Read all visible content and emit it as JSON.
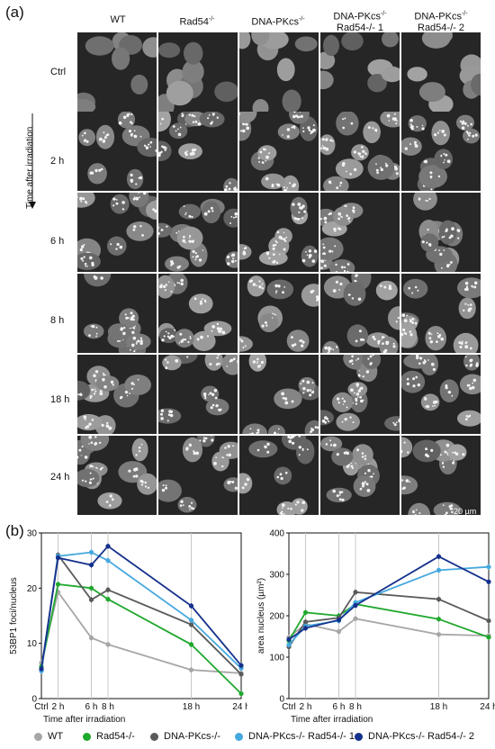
{
  "panel_a": {
    "letter": "(a)",
    "columns": [
      {
        "main": "WT",
        "sup": "",
        "line2": ""
      },
      {
        "main": "Rad54",
        "sup": "-/-",
        "line2": ""
      },
      {
        "main": "DNA-PKcs",
        "sup": "-/-",
        "line2": ""
      },
      {
        "main": "DNA-PKcs",
        "sup": "-/-",
        "line2": "Rad54-/- 1"
      },
      {
        "main": "DNA-PKcs",
        "sup": "-/-",
        "line2": "Rad54-/- 2"
      }
    ],
    "rows": [
      "Ctrl",
      "2 h",
      "6 h",
      "8 h",
      "18 h",
      "24 h"
    ],
    "vertical_label": "Time after irradiation",
    "scale_bar": "20 µm"
  },
  "panel_b": {
    "letter": "(b)",
    "legend": [
      {
        "label": "WT",
        "color": "#a6a6a6"
      },
      {
        "label": "Rad54-/-",
        "color": "#1fa82e"
      },
      {
        "label": "DNA-PKcs-/-",
        "color": "#5a5a5a"
      },
      {
        "label": "DNA-PKcs-/- Rad54-/- 1",
        "color": "#45a8de"
      },
      {
        "label": "DNA-PKcs-/- Rad54-/- 2",
        "color": "#15308c"
      }
    ]
  },
  "chart_data": [
    {
      "type": "line",
      "ylabel": "53BP1 foci/nucleus",
      "xlabel": "Time after irradiation",
      "x_ticks": [
        "Ctrl",
        "2 h",
        "6 h",
        "8 h",
        "18 h",
        "24 h"
      ],
      "x": [
        0,
        2,
        6,
        8,
        18,
        24
      ],
      "ylim": [
        0,
        30
      ],
      "y_ticks": [
        0,
        10,
        20,
        30
      ],
      "series": [
        {
          "name": "WT",
          "color": "#a6a6a6",
          "values": [
            6.5,
            19.3,
            11.0,
            9.8,
            5.2,
            4.6
          ]
        },
        {
          "name": "Rad54-/-",
          "color": "#1fa82e",
          "values": [
            5.8,
            20.7,
            20.0,
            18.0,
            9.8,
            0.9
          ]
        },
        {
          "name": "DNA-PKcs-/-",
          "color": "#5a5a5a",
          "values": [
            5.2,
            26.0,
            17.9,
            19.7,
            13.4,
            4.4
          ]
        },
        {
          "name": "DNA-PKcs-/- Rad54-/- 1",
          "color": "#45a8de",
          "values": [
            5.0,
            25.8,
            26.5,
            25.0,
            14.2,
            5.5
          ]
        },
        {
          "name": "DNA-PKcs-/- Rad54-/- 2",
          "color": "#15308c",
          "values": [
            5.4,
            25.5,
            24.2,
            27.6,
            16.8,
            6.0
          ]
        }
      ]
    },
    {
      "type": "line",
      "ylabel": "area nucleus (µm²)",
      "xlabel": "Time after irradiation",
      "x_ticks": [
        "Ctrl",
        "2 h",
        "6 h",
        "8 h",
        "18 h",
        "24 h"
      ],
      "x": [
        0,
        2,
        6,
        8,
        18,
        24
      ],
      "ylim": [
        0,
        400
      ],
      "y_ticks": [
        0,
        100,
        200,
        300,
        400
      ],
      "series": [
        {
          "name": "WT",
          "color": "#a6a6a6",
          "values": [
            148,
            180,
            162,
            193,
            155,
            152
          ]
        },
        {
          "name": "Rad54-/-",
          "color": "#1fa82e",
          "values": [
            140,
            208,
            200,
            228,
            192,
            148
          ]
        },
        {
          "name": "DNA-PKcs-/-",
          "color": "#5a5a5a",
          "values": [
            125,
            185,
            195,
            257,
            240,
            188
          ]
        },
        {
          "name": "DNA-PKcs-/- Rad54-/- 1",
          "color": "#45a8de",
          "values": [
            130,
            175,
            188,
            232,
            310,
            318
          ]
        },
        {
          "name": "DNA-PKcs-/- Rad54-/- 2",
          "color": "#15308c",
          "values": [
            143,
            170,
            190,
            225,
            343,
            282
          ]
        }
      ]
    }
  ]
}
